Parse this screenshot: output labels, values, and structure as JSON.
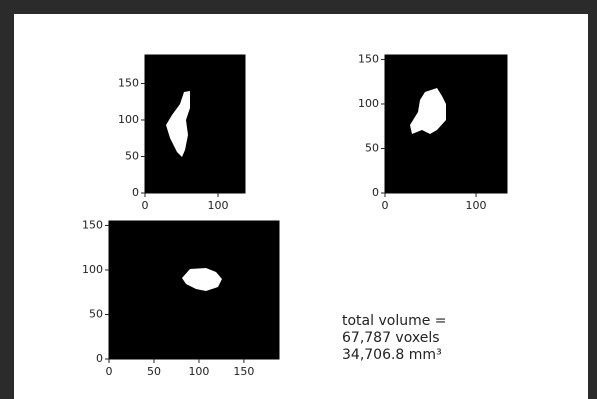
{
  "chart_data": [
    {
      "type": "image",
      "xlim": [
        0,
        137
      ],
      "ylim": [
        0,
        189
      ],
      "xticks": [
        0,
        100
      ],
      "yticks": [
        0,
        50,
        100,
        150
      ]
    },
    {
      "type": "image",
      "xlim": [
        0,
        134
      ],
      "ylim": [
        0,
        155
      ],
      "xticks": [
        0,
        100
      ],
      "yticks": [
        0,
        50,
        100,
        150
      ]
    },
    {
      "type": "image",
      "xlim": [
        0,
        189
      ],
      "ylim": [
        0,
        155
      ],
      "xticks": [
        0,
        50,
        100,
        150
      ],
      "yticks": [
        0,
        50,
        100,
        150
      ]
    }
  ],
  "summary": {
    "lines": [
      "total volume =",
      "67,787 voxels",
      "34,706.8 mm³"
    ]
  }
}
